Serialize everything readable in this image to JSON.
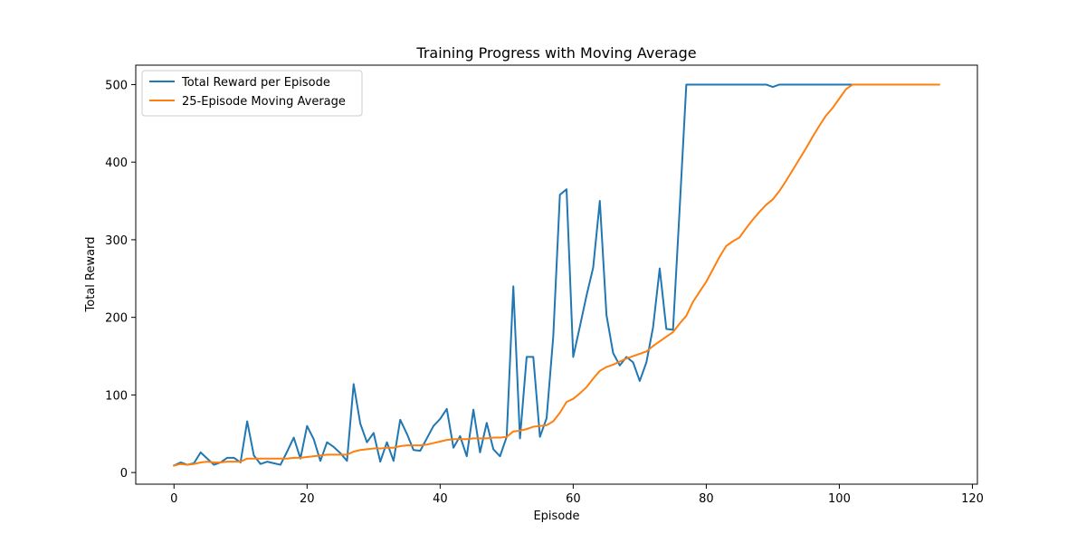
{
  "chart_data": {
    "type": "line",
    "title": "Training Progress with Moving Average",
    "xlabel": "Episode",
    "ylabel": "Total Reward",
    "xlim": [
      -5.75,
      120.75
    ],
    "ylim": [
      -15,
      525
    ],
    "xticks": [
      0,
      20,
      40,
      60,
      80,
      100,
      120
    ],
    "yticks": [
      0,
      100,
      200,
      300,
      400,
      500
    ],
    "grid": false,
    "legend_position": "top-left",
    "series": [
      {
        "name": "Total Reward per Episode",
        "color": "#1f77b4",
        "x": [
          0,
          1,
          2,
          3,
          4,
          5,
          6,
          7,
          8,
          9,
          10,
          11,
          12,
          13,
          14,
          15,
          16,
          17,
          18,
          19,
          20,
          21,
          22,
          23,
          24,
          25,
          26,
          27,
          28,
          29,
          30,
          31,
          32,
          33,
          34,
          35,
          36,
          37,
          38,
          39,
          40,
          41,
          42,
          43,
          44,
          45,
          46,
          47,
          48,
          49,
          50,
          51,
          52,
          53,
          54,
          55,
          56,
          57,
          58,
          59,
          60,
          61,
          62,
          63,
          64,
          65,
          66,
          67,
          68,
          69,
          70,
          71,
          72,
          73,
          74,
          75,
          76,
          77,
          78,
          79,
          80,
          81,
          82,
          83,
          84,
          85,
          86,
          87,
          88,
          89,
          90,
          91,
          92,
          93,
          94,
          95,
          96,
          97,
          98,
          99,
          100,
          101,
          102
        ],
        "y": [
          9,
          13,
          10,
          12,
          26,
          18,
          10,
          13,
          19,
          19,
          13,
          66,
          22,
          11,
          14,
          12,
          10,
          27,
          45,
          18,
          60,
          43,
          15,
          39,
          33,
          25,
          15,
          114,
          63,
          39,
          51,
          14,
          39,
          15,
          68,
          50,
          29,
          28,
          44,
          60,
          69,
          82,
          32,
          47,
          21,
          81,
          26,
          64,
          30,
          21,
          46,
          240,
          44,
          149,
          149,
          46,
          70,
          175,
          358,
          365,
          149,
          188,
          228,
          264,
          350,
          203,
          154,
          138,
          149,
          142,
          118,
          142,
          187,
          263,
          185,
          184,
          340,
          500,
          500,
          500,
          500,
          500,
          500,
          500,
          500,
          500,
          500,
          500,
          500,
          500,
          497,
          500,
          500,
          500,
          500,
          500,
          500,
          500,
          500,
          500,
          500,
          500,
          500
        ]
      },
      {
        "name": "25-Episode Moving Average",
        "color": "#ff7f0e",
        "x": [
          0,
          1,
          2,
          3,
          4,
          5,
          6,
          7,
          8,
          9,
          10,
          11,
          12,
          13,
          14,
          15,
          16,
          17,
          18,
          19,
          20,
          21,
          22,
          23,
          24,
          25,
          26,
          27,
          28,
          29,
          30,
          31,
          32,
          33,
          34,
          35,
          36,
          37,
          38,
          39,
          40,
          41,
          42,
          43,
          44,
          45,
          46,
          47,
          48,
          49,
          50,
          51,
          52,
          53,
          54,
          55,
          56,
          57,
          58,
          59,
          60,
          61,
          62,
          63,
          64,
          65,
          66,
          67,
          68,
          69,
          70,
          71,
          72,
          73,
          74,
          75,
          76,
          77,
          78,
          79,
          80,
          81,
          82,
          83,
          84,
          85,
          86,
          87,
          88,
          89,
          90,
          91,
          92,
          93,
          94,
          95,
          96,
          97,
          98,
          99,
          100,
          101,
          102,
          103,
          104,
          105,
          106,
          107,
          108,
          109,
          110,
          111,
          112,
          113,
          114,
          115
        ],
        "y": [
          9,
          11,
          10,
          11,
          13,
          14,
          13,
          13,
          14,
          14,
          14,
          18,
          18,
          18,
          18,
          18,
          18,
          18,
          19,
          19,
          20,
          21,
          22,
          23,
          23,
          23,
          23,
          27,
          29,
          30,
          31,
          31,
          32,
          32,
          34,
          35,
          35,
          35,
          36,
          38,
          40,
          42,
          43,
          43,
          43,
          44,
          44,
          44,
          45,
          45,
          46,
          53,
          54,
          56,
          59,
          60,
          61,
          66,
          77,
          91,
          95,
          102,
          110,
          121,
          131,
          136,
          139,
          143,
          147,
          150,
          153,
          156,
          163,
          169,
          175,
          181,
          192,
          202,
          220,
          233,
          246,
          262,
          278,
          292,
          298,
          303,
          315,
          326,
          336,
          345,
          352,
          363,
          376,
          390,
          404,
          418,
          433,
          447,
          460,
          470,
          482,
          494,
          500,
          500,
          500,
          500,
          500,
          500,
          500,
          500,
          500,
          500,
          500,
          500,
          500,
          500
        ]
      }
    ]
  }
}
